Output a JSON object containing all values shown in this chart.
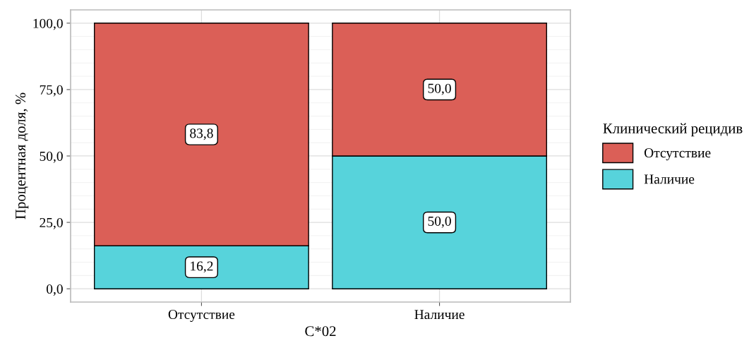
{
  "chart_data": {
    "type": "bar",
    "stacked": true,
    "xlabel": "C*02",
    "ylabel": "Процентная доля, %",
    "legend_title": "Клинический рецидив",
    "categories": [
      "Отсутствие",
      "Наличие"
    ],
    "series": [
      {
        "name": "Наличие",
        "color": "#57d3db",
        "values": [
          16.2,
          50.0
        ],
        "value_labels": [
          "16,2",
          "50,0"
        ]
      },
      {
        "name": "Отсутствие",
        "color": "#db5f57",
        "values": [
          83.8,
          50.0
        ],
        "value_labels": [
          "83,8",
          "50,0"
        ]
      }
    ],
    "ylim": [
      -5,
      105
    ],
    "yticks": [
      {
        "value": 0,
        "label": "0,0"
      },
      {
        "value": 25,
        "label": "25,0"
      },
      {
        "value": 50,
        "label": "50,0"
      },
      {
        "value": 75,
        "label": "75,0"
      },
      {
        "value": 100,
        "label": "100,0"
      }
    ],
    "grid": true,
    "legend": "right"
  }
}
